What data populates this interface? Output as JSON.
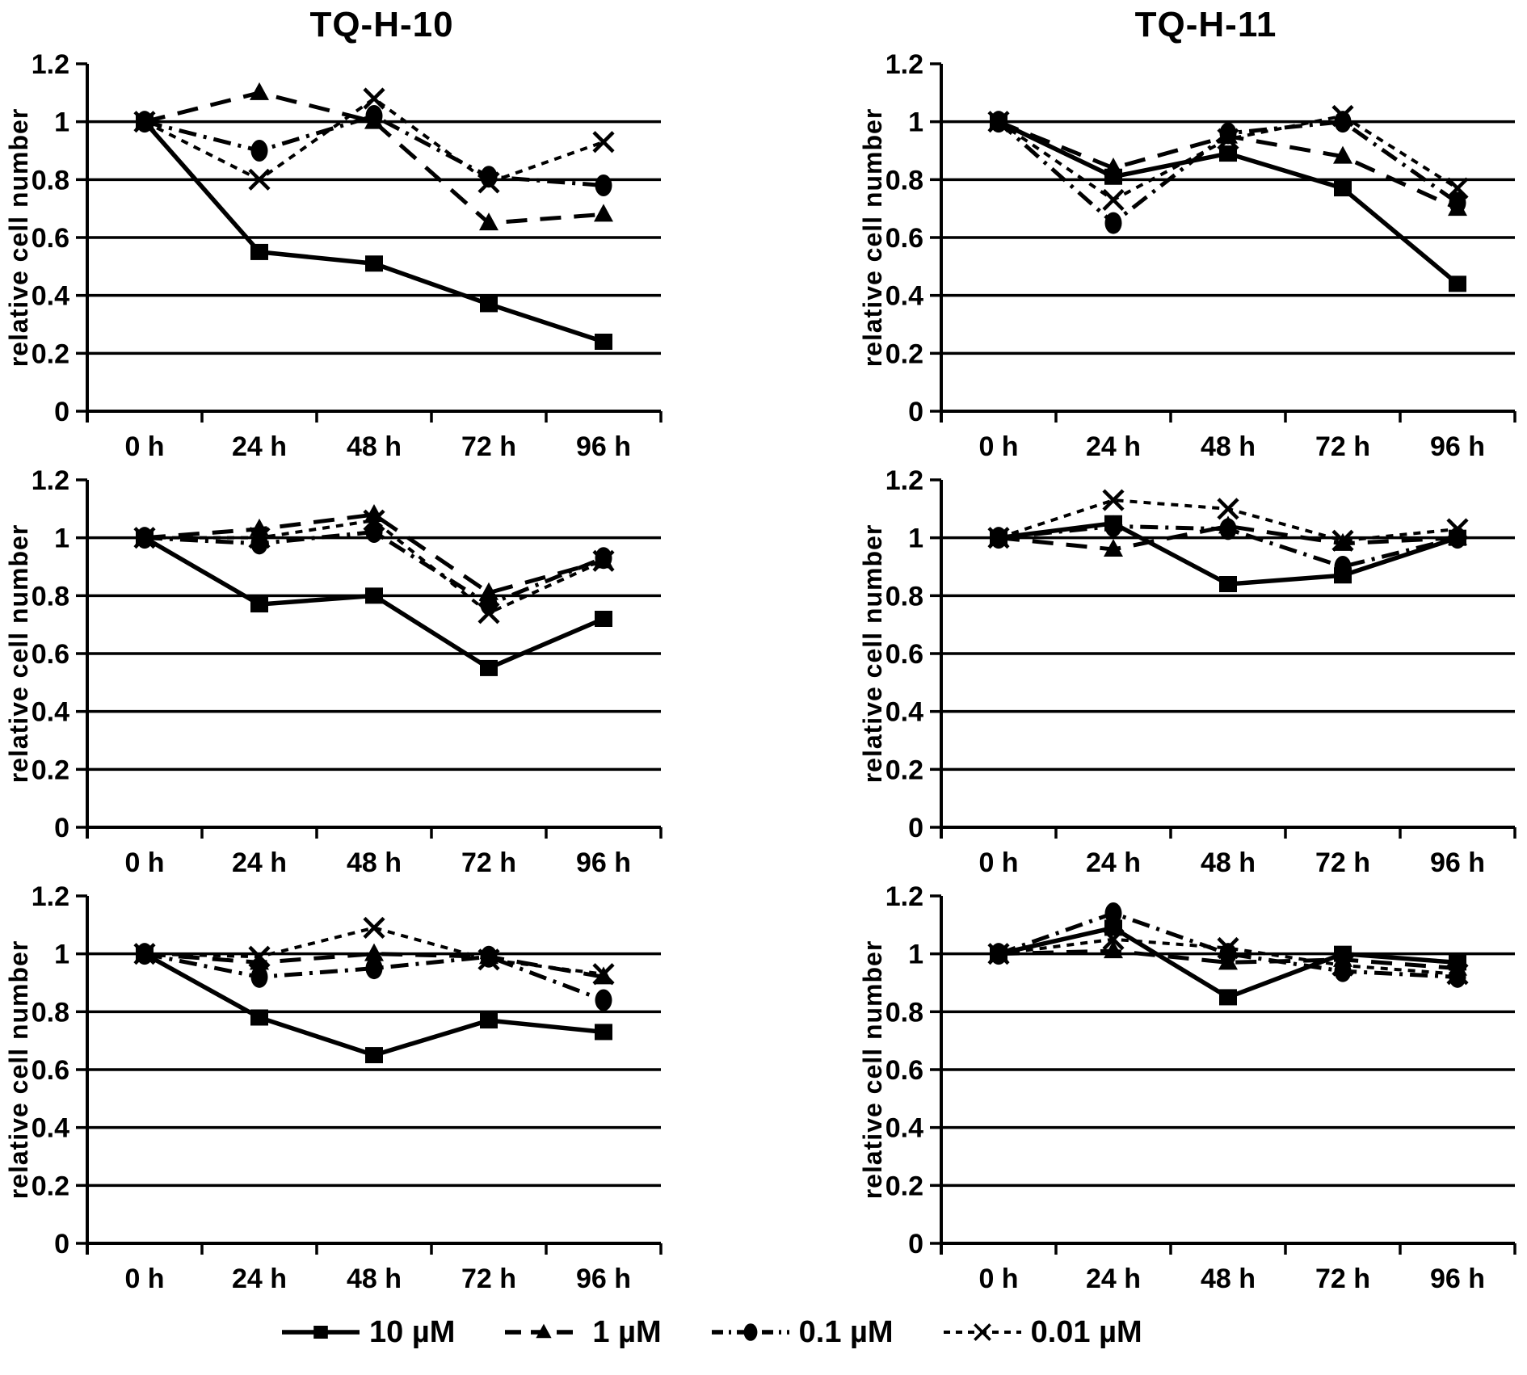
{
  "figure": {
    "column_titles": [
      "TQ-H-10",
      "TQ-H-11"
    ],
    "y_axis_label": "relative cell number",
    "x_categories": [
      "0 h",
      "24 h",
      "48 h",
      "72 h",
      "96 h"
    ],
    "y_ticks": [
      {
        "value": 0,
        "label": "0"
      },
      {
        "value": 0.2,
        "label": "0.2"
      },
      {
        "value": 0.4,
        "label": "0.4"
      },
      {
        "value": 0.6,
        "label": "0.6"
      },
      {
        "value": 0.8,
        "label": "0.8"
      },
      {
        "value": 1,
        "label": "1"
      },
      {
        "value": 1.2,
        "label": "1.2"
      }
    ],
    "y_max": 1.2,
    "line_color": "#000000",
    "background_color": "#ffffff"
  },
  "legend": {
    "items": [
      {
        "label": "10 µM",
        "marker": "square",
        "line": "solid"
      },
      {
        "label": "1 µM",
        "marker": "triangle",
        "line": "long-dash"
      },
      {
        "label": "0.1 µM",
        "marker": "circle",
        "line": "dash-dot"
      },
      {
        "label": "0.01 µM",
        "marker": "x",
        "line": "short-dash"
      }
    ]
  },
  "chart_data": [
    {
      "type": "line",
      "title": "TQ-H-10",
      "panel": "row1-left",
      "ylabel": "relative cell number",
      "categories": [
        "0 h",
        "24 h",
        "48 h",
        "72 h",
        "96 h"
      ],
      "ylim": [
        0,
        1.2
      ],
      "grid": true,
      "series": [
        {
          "name": "10 µM",
          "marker": "square",
          "line": "solid",
          "values": [
            1.0,
            0.55,
            0.51,
            0.37,
            0.24
          ]
        },
        {
          "name": "1 µM",
          "marker": "triangle",
          "line": "long-dash",
          "values": [
            1.0,
            1.1,
            1.0,
            0.65,
            0.68
          ]
        },
        {
          "name": "0.1 µM",
          "marker": "circle",
          "line": "dash-dot",
          "values": [
            1.0,
            0.9,
            1.02,
            0.81,
            0.78
          ]
        },
        {
          "name": "0.01 µM",
          "marker": "x",
          "line": "short-dash",
          "values": [
            1.0,
            0.8,
            1.08,
            0.79,
            0.93
          ]
        }
      ]
    },
    {
      "type": "line",
      "title": "TQ-H-11",
      "panel": "row1-right",
      "ylabel": "relative cell number",
      "categories": [
        "0 h",
        "24 h",
        "48 h",
        "72 h",
        "96 h"
      ],
      "ylim": [
        0,
        1.2
      ],
      "grid": true,
      "series": [
        {
          "name": "10 µM",
          "marker": "square",
          "line": "solid",
          "values": [
            1.0,
            0.81,
            0.89,
            0.77,
            0.44
          ]
        },
        {
          "name": "1 µM",
          "marker": "triangle",
          "line": "long-dash",
          "values": [
            1.0,
            0.84,
            0.95,
            0.88,
            0.7
          ]
        },
        {
          "name": "0.1 µM",
          "marker": "circle",
          "line": "dash-dot",
          "values": [
            1.0,
            0.65,
            0.96,
            1.0,
            0.72
          ]
        },
        {
          "name": "0.01 µM",
          "marker": "x",
          "line": "short-dash",
          "values": [
            1.0,
            0.73,
            0.94,
            1.02,
            0.77
          ]
        }
      ]
    },
    {
      "type": "line",
      "title": "TQ-H-10",
      "panel": "row2-left",
      "ylabel": "relative cell number",
      "categories": [
        "0 h",
        "24 h",
        "48 h",
        "72 h",
        "96 h"
      ],
      "ylim": [
        0,
        1.2
      ],
      "grid": true,
      "series": [
        {
          "name": "10 µM",
          "marker": "square",
          "line": "solid",
          "values": [
            1.0,
            0.77,
            0.8,
            0.55,
            0.72
          ]
        },
        {
          "name": "1 µM",
          "marker": "triangle",
          "line": "long-dash",
          "values": [
            1.0,
            1.03,
            1.08,
            0.81,
            0.92
          ]
        },
        {
          "name": "0.1 µM",
          "marker": "circle",
          "line": "dash-dot",
          "values": [
            1.0,
            0.98,
            1.02,
            0.77,
            0.93
          ]
        },
        {
          "name": "0.01 µM",
          "marker": "x",
          "line": "short-dash",
          "values": [
            1.0,
            1.0,
            1.06,
            0.74,
            0.92
          ]
        }
      ]
    },
    {
      "type": "line",
      "title": "TQ-H-11",
      "panel": "row2-right",
      "ylabel": "relative cell number",
      "categories": [
        "0 h",
        "24 h",
        "48 h",
        "72 h",
        "96 h"
      ],
      "ylim": [
        0,
        1.2
      ],
      "grid": true,
      "series": [
        {
          "name": "10 µM",
          "marker": "square",
          "line": "solid",
          "values": [
            1.0,
            1.05,
            0.84,
            0.87,
            1.0
          ]
        },
        {
          "name": "1 µM",
          "marker": "triangle",
          "line": "long-dash",
          "values": [
            1.0,
            0.96,
            1.04,
            0.98,
            1.0
          ]
        },
        {
          "name": "0.1 µM",
          "marker": "circle",
          "line": "dash-dot",
          "values": [
            1.0,
            1.04,
            1.03,
            0.9,
            1.0
          ]
        },
        {
          "name": "0.01 µM",
          "marker": "x",
          "line": "short-dash",
          "values": [
            1.0,
            1.13,
            1.1,
            0.99,
            1.03
          ]
        }
      ]
    },
    {
      "type": "line",
      "title": "TQ-H-10",
      "panel": "row3-left",
      "ylabel": "relative cell number",
      "categories": [
        "0 h",
        "24 h",
        "48 h",
        "72 h",
        "96 h"
      ],
      "ylim": [
        0,
        1.2
      ],
      "grid": true,
      "series": [
        {
          "name": "10 µM",
          "marker": "square",
          "line": "solid",
          "values": [
            1.0,
            0.78,
            0.65,
            0.77,
            0.73
          ]
        },
        {
          "name": "1 µM",
          "marker": "triangle",
          "line": "long-dash",
          "values": [
            1.0,
            0.97,
            1.0,
            0.99,
            0.92
          ]
        },
        {
          "name": "0.1 µM",
          "marker": "circle",
          "line": "dash-dot",
          "values": [
            1.0,
            0.92,
            0.95,
            0.99,
            0.84
          ]
        },
        {
          "name": "0.01 µM",
          "marker": "x",
          "line": "short-dash",
          "values": [
            1.0,
            0.99,
            1.09,
            0.98,
            0.93
          ]
        }
      ]
    },
    {
      "type": "line",
      "title": "TQ-H-11",
      "panel": "row3-right",
      "ylabel": "relative cell number",
      "categories": [
        "0 h",
        "24 h",
        "48 h",
        "72 h",
        "96 h"
      ],
      "ylim": [
        0,
        1.2
      ],
      "grid": true,
      "series": [
        {
          "name": "10 µM",
          "marker": "square",
          "line": "solid",
          "values": [
            1.0,
            1.09,
            0.85,
            1.0,
            0.97
          ]
        },
        {
          "name": "1 µM",
          "marker": "triangle",
          "line": "long-dash",
          "values": [
            1.0,
            1.01,
            0.97,
            0.98,
            0.95
          ]
        },
        {
          "name": "0.1 µM",
          "marker": "circle",
          "line": "dash-dot",
          "values": [
            1.0,
            1.14,
            1.0,
            0.94,
            0.92
          ]
        },
        {
          "name": "0.01 µM",
          "marker": "x",
          "line": "short-dash",
          "values": [
            1.0,
            1.05,
            1.02,
            0.96,
            0.93
          ]
        }
      ]
    }
  ]
}
